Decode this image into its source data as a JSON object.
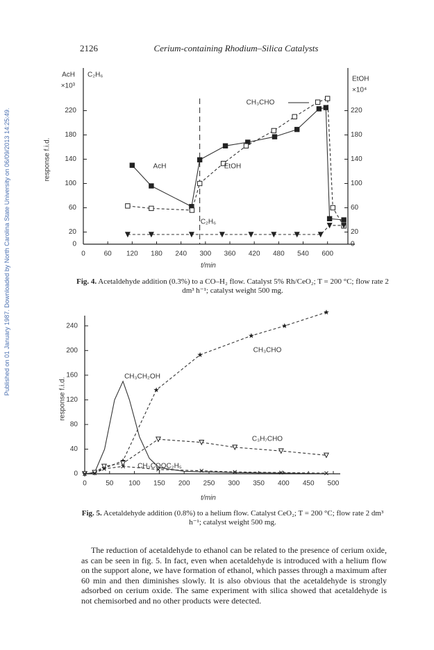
{
  "header": {
    "page_number": "2126",
    "running_title": "Cerium-containing Rhodium–Silica Catalysts"
  },
  "side_note": "Published on 01 January 1987. Downloaded by North Carolina State University on 06/09/2013 14:25:49.",
  "chart_data": [
    {
      "type": "line",
      "x_label": "t/min",
      "y_label": "response f.i.d.",
      "y_title_lines": [
        "AcH",
        "×10³"
      ],
      "y_title_2": "C₂H₆",
      "y2_title_lines": [
        "EtOH",
        "×10⁴"
      ],
      "annotations": [
        "CH₃CHO"
      ],
      "xlim": [
        0,
        650
      ],
      "xticks": [
        0,
        60,
        120,
        180,
        240,
        300,
        360,
        420,
        480,
        540,
        600
      ],
      "ylim": [
        0,
        240
      ],
      "yticks": [
        0,
        20,
        60,
        100,
        140,
        180,
        220
      ],
      "y2lim": [
        0,
        240
      ],
      "y2ticks": [
        0,
        20,
        60,
        100,
        140,
        180,
        220
      ],
      "series": [
        {
          "name": "AcH",
          "color": "#333333",
          "line": "solid",
          "marker": "filled-square",
          "x": [
            120,
            167,
            266,
            286,
            349,
            404,
            470,
            525,
            579,
            596,
            605,
            640
          ],
          "values": [
            130,
            96,
            62,
            139,
            162,
            168,
            177,
            189,
            223,
            225,
            42,
            40
          ]
        },
        {
          "name": "EtOH",
          "color": "#333333",
          "line": "dashed",
          "marker": "open-square",
          "axis": "y2",
          "x": [
            109,
            167,
            267,
            286,
            344,
            400,
            468,
            519,
            576,
            600,
            613,
            640
          ],
          "values": [
            63,
            59,
            56,
            100,
            133,
            162,
            187,
            210,
            234,
            240,
            60,
            30
          ]
        },
        {
          "name": "C₂H₆",
          "color": "#333333",
          "line": "dashed",
          "marker": "filled-triangle",
          "x": [
            109,
            167,
            266,
            341,
            412,
            468,
            525,
            583,
            605,
            640
          ],
          "values": [
            16,
            16,
            16,
            16,
            16,
            16,
            16,
            16,
            31,
            31
          ]
        }
      ]
    },
    {
      "type": "line",
      "x_label": "t/min",
      "y_label": "response f.i.d.",
      "xlim": [
        0,
        500
      ],
      "xticks": [
        0,
        50,
        100,
        150,
        200,
        250,
        300,
        350,
        400,
        450,
        500
      ],
      "ylim": [
        0,
        260
      ],
      "yticks": [
        0,
        40,
        80,
        120,
        160,
        200,
        240
      ],
      "series": [
        {
          "name": "CH₃CH₂OH",
          "color": "#333333",
          "line": "solid",
          "x": [
            0,
            20,
            40,
            60,
            77,
            90,
            110,
            130,
            150,
            200,
            300,
            400,
            500
          ],
          "values": [
            0,
            2,
            40,
            120,
            150,
            120,
            60,
            25,
            10,
            4,
            2,
            1,
            0
          ]
        },
        {
          "name": "CH₃CHO",
          "color": "#333333",
          "line": "dashed",
          "marker": "star",
          "x": [
            0,
            20,
            39,
            77,
            144,
            232,
            335,
            402,
            486
          ],
          "values": [
            0,
            2,
            9,
            21,
            136,
            193,
            224,
            240,
            262
          ]
        },
        {
          "name": "C₃H₇CHO",
          "color": "#333333",
          "line": "dashed",
          "marker": "open-triangle",
          "x": [
            0,
            20,
            39,
            77,
            148,
            235,
            302,
            395,
            486
          ],
          "values": [
            0,
            2,
            12,
            17,
            56,
            51,
            43,
            37,
            30
          ]
        },
        {
          "name": "CH₃COOC₂H₅",
          "color": "#333333",
          "line": "dashed",
          "marker": "cross",
          "x": [
            0,
            20,
            39,
            77,
            148,
            235,
            302,
            395,
            486
          ],
          "values": [
            0,
            1,
            8,
            12,
            7,
            5,
            3,
            2,
            1
          ]
        }
      ]
    }
  ],
  "captions": [
    {
      "label": "Fig. 4.",
      "text": "Acetaldehyde addition (0.3%) to a CO–H₂ flow. Catalyst 5% Rh/CeO₂; T = 200 °C; flow rate 2 dm³ h⁻¹; catalyst weight 500 mg."
    },
    {
      "label": "Fig. 5.",
      "text": "Acetaldehyde addition (0.8%) to a helium flow. Catalyst CeO₂; T = 200 °C; flow rate 2 dm³ h⁻¹; catalyst weight 500 mg."
    }
  ],
  "body": "The reduction of acetaldehyde to ethanol can be related to the presence of cerium oxide, as can be seen in fig. 5. In fact, even when acetaldehyde is introduced with a helium flow on the support alone, we have formation of ethanol, which passes through a maximum after 60 min and then diminishes slowly. It is also obvious that the acetaldehyde is strongly adsorbed on cerium oxide. The same experiment with silica showed that acetaldehyde is not chemisorbed and no other products were detected."
}
